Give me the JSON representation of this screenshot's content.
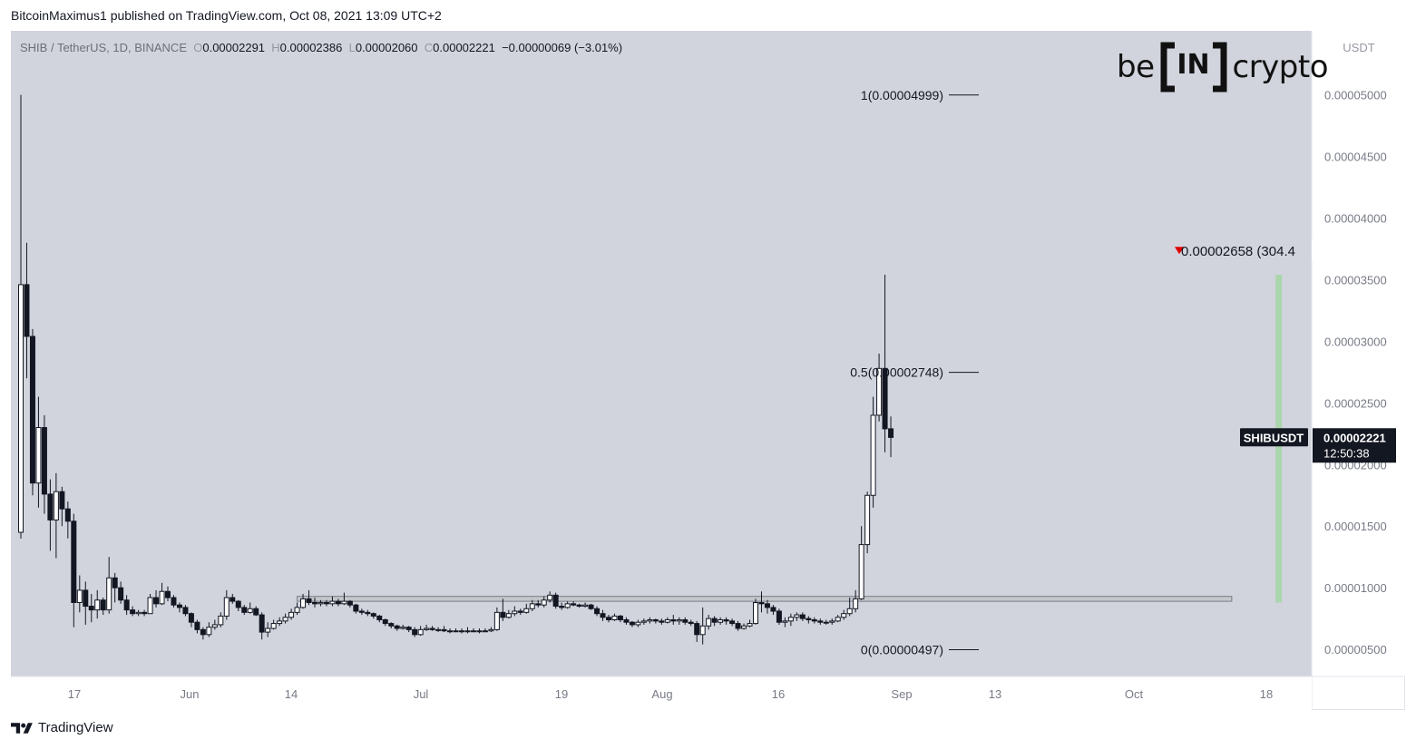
{
  "header": {
    "published_line": "BitcoinMaximus1 published on TradingView.com, Oct 08, 2021 13:09 UTC+2"
  },
  "symbol_bar": {
    "symbol": "SHIB / TetherUS, 1D, BINANCE",
    "open_label": "O",
    "open": "0.00002291",
    "high_label": "H",
    "high": "0.00002386",
    "low_label": "L",
    "low": "0.00002060",
    "close_label": "C",
    "close": "0.00002221",
    "change": "−0.00000069 (−3.01%)"
  },
  "logo": {
    "left": "be",
    "box": "IN",
    "right": "crypto"
  },
  "price_axis": {
    "currency": "USDT",
    "ticks": [
      "0.00005000",
      "0.00004500",
      "0.00004000",
      "0.00003500",
      "0.00003000",
      "0.00002500",
      "0.00002000",
      "0.00001500",
      "0.00001000",
      "0.00000500"
    ]
  },
  "last_price_tag": {
    "symbol": "SHIBUSDT",
    "price": "0.00002221",
    "countdown": "12:50:38"
  },
  "footer": {
    "brand": "TradingView"
  },
  "colors": {
    "chart_bg": "#d1d4dc",
    "candle_up": "#ffffff",
    "candle_down": "#131722",
    "green_bar": "#a5d6a7",
    "marker": "#e00000"
  },
  "chart_data": {
    "type": "candlestick",
    "title": "SHIB / TetherUS, 1D, BINANCE",
    "ylabel": "USDT",
    "ylim": [
      2.8e-06,
      5.52e-05
    ],
    "x_ticks": [
      "17",
      "Jun",
      "14",
      "Jul",
      "19",
      "Aug",
      "16",
      "Sep",
      "13",
      "Oct",
      "18"
    ],
    "fib_levels": [
      {
        "label": "1(0.00004999)",
        "value": 4.999e-05
      },
      {
        "label": "0.5(0.00002748)",
        "value": 2.748e-05
      },
      {
        "label": "0(0.00000497)",
        "value": 4.97e-06
      }
    ],
    "support_zone": {
      "low": 8.9e-06,
      "high": 9.3e-06
    },
    "high_marker": {
      "label": "0.00002658 (304.4",
      "value": 3.73e-05
    },
    "green_range": {
      "low": 8.8e-06,
      "high": 3.54e-05
    },
    "last_price": 2.221e-05,
    "candles_1": [
      [
        1.45e-05,
        3.46e-05,
        5e-05,
        1.4e-05
      ],
      [
        3.46e-05,
        3.04e-05,
        3.8e-05,
        2.7e-05
      ],
      [
        3.04e-05,
        1.85e-05,
        3.1e-05,
        1.75e-05
      ],
      [
        1.85e-05,
        2.3e-05,
        2.55e-05,
        1.65e-05
      ],
      [
        2.3e-05,
        1.76e-05,
        2.4e-05,
        1.6e-05
      ],
      [
        1.76e-05,
        1.55e-05,
        1.88e-05,
        1.3e-05
      ],
      [
        1.55e-05,
        1.78e-05,
        1.93e-05,
        1.24e-05
      ],
      [
        1.78e-05,
        1.64e-05,
        1.82e-05,
        1.5e-05
      ],
      [
        1.64e-05,
        1.54e-05,
        1.7e-05,
        1.4e-05
      ],
      [
        1.54e-05,
        8.8e-06,
        1.6e-05,
        6.8e-06
      ],
      [
        8.8e-06,
        9.8e-06,
        1.1e-05,
        8e-06
      ],
      [
        9.8e-06,
        8.5e-06,
        1.05e-05,
        7e-06
      ],
      [
        8.5e-06,
        8.2e-06,
        9.5e-06,
        7.2e-06
      ],
      [
        8.2e-06,
        9e-06,
        9.8e-06,
        7.5e-06
      ],
      [
        9e-06,
        8.2e-06,
        9.2e-06,
        7.8e-06
      ],
      [
        8.2e-06,
        1.08e-05,
        1.25e-05,
        7.9e-06
      ],
      [
        1.08e-05,
        1e-05,
        1.12e-05,
        8.8e-06
      ],
      [
        1e-05,
        9e-06,
        1.05e-05,
        8.7e-06
      ],
      [
        9e-06,
        8.2e-06,
        9.4e-06,
        7.8e-06
      ],
      [
        8.2e-06,
        7.9e-06,
        8.5e-06,
        7.7e-06
      ],
      [
        7.9e-06,
        8e-06,
        8.2e-06,
        7.7e-06
      ],
      [
        8e-06,
        7.9e-06,
        8.2e-06,
        7.7e-06
      ],
      [
        7.9e-06,
        9.2e-06,
        9.5e-06,
        7.9e-06
      ]
    ],
    "candles_2": [
      [
        9.2e-06,
        8.7e-06,
        9.8e-06,
        8.4e-06
      ],
      [
        8.7e-06,
        9.7e-06,
        1.04e-05,
        8.6e-06
      ],
      [
        9.7e-06,
        9.2e-06,
        1.01e-05,
        8.9e-06
      ],
      [
        9.2e-06,
        8.6e-06,
        9.4e-06,
        8.4e-06
      ],
      [
        8.6e-06,
        8.4e-06,
        8.8e-06,
        8e-06
      ],
      [
        8.4e-06,
        7.9e-06,
        8.6e-06,
        7.7e-06
      ],
      [
        7.9e-06,
        7.2e-06,
        8e-06,
        6.8e-06
      ],
      [
        7.2e-06,
        6.6e-06,
        7.4e-06,
        6.3e-06
      ],
      [
        6.6e-06,
        6.2e-06,
        6.8e-06,
        5.8e-06
      ],
      [
        6.2e-06,
        6.8e-06,
        7.2e-06,
        6e-06
      ],
      [
        6.8e-06,
        7e-06,
        7.4e-06,
        6.6e-06
      ],
      [
        7e-06,
        7.7e-06,
        8e-06,
        6.8e-06
      ],
      [
        7.7e-06,
        9.2e-06,
        9.8e-06,
        7.4e-06
      ],
      [
        9.2e-06,
        8.9e-06,
        9.5e-06,
        8.7e-06
      ],
      [
        8.9e-06,
        8.4e-06,
        9e-06,
        8.1e-06
      ],
      [
        8.4e-06,
        8e-06,
        8.6e-06,
        7.8e-06
      ],
      [
        8e-06,
        8.3e-06,
        8.8e-06,
        7.9e-06
      ],
      [
        8.3e-06,
        7.8e-06,
        8.5e-06,
        7.7e-06
      ],
      [
        7.8e-06,
        6.4e-06,
        8e-06,
        5.8e-06
      ],
      [
        6.4e-06,
        6.7e-06,
        7.2e-06,
        6e-06
      ],
      [
        6.7e-06,
        7.1e-06,
        7.4e-06,
        6.6e-06
      ],
      [
        7.1e-06,
        7.3e-06,
        7.6e-06,
        6.9e-06
      ],
      [
        7.3e-06,
        7.6e-06,
        7.9e-06,
        7.1e-06
      ],
      [
        7.6e-06,
        8e-06,
        8.3e-06,
        7.4e-06
      ],
      [
        8e-06,
        8.4e-06,
        8.8e-06,
        7.8e-06
      ],
      [
        8.4e-06,
        9.1e-06,
        9.5e-06,
        8.3e-06
      ],
      [
        9.1e-06,
        8.8e-06,
        9.8e-06,
        8.6e-06
      ],
      [
        8.8e-06,
        8.7e-06,
        9.2e-06,
        8.4e-06
      ],
      [
        8.7e-06,
        8.8e-06,
        9e-06,
        8.5e-06
      ],
      [
        8.8e-06,
        8.7e-06,
        9e-06,
        8.5e-06
      ],
      [
        8.7e-06,
        8.9e-06,
        9.3e-06,
        8.5e-06
      ],
      [
        8.9e-06,
        8.7e-06,
        9.1e-06,
        8.5e-06
      ],
      [
        8.7e-06,
        8.9e-06,
        9.6e-06,
        8.6e-06
      ],
      [
        8.9e-06,
        8.6e-06,
        9e-06,
        8.4e-06
      ],
      [
        8.6e-06,
        8.1e-06,
        8.7e-06,
        7.9e-06
      ],
      [
        8.1e-06,
        8e-06,
        8.3e-06,
        7.8e-06
      ],
      [
        8e-06,
        7.9e-06,
        8.2e-06,
        7.7e-06
      ],
      [
        7.9e-06,
        7.7e-06,
        8e-06,
        7.5e-06
      ],
      [
        7.7e-06,
        7.4e-06,
        7.8e-06,
        7.2e-06
      ],
      [
        7.4e-06,
        7.1e-06,
        7.5e-06,
        6.9e-06
      ],
      [
        7.1e-06,
        6.9e-06,
        7.2e-06,
        6.7e-06
      ],
      [
        6.9e-06,
        6.7e-06,
        7e-06,
        6.5e-06
      ],
      [
        6.7e-06,
        6.8e-06,
        7e-06,
        6.6e-06
      ],
      [
        6.8e-06,
        6.6e-06,
        6.9e-06,
        6.4e-06
      ]
    ],
    "candles_3": [
      [
        6.6e-06,
        6.2e-06,
        6.8e-06,
        6e-06
      ],
      [
        6.2e-06,
        6.6e-06,
        6.9e-06,
        6.1e-06
      ],
      [
        6.6e-06,
        6.7e-06,
        7e-06,
        6.5e-06
      ],
      [
        6.7e-06,
        6.6e-06,
        6.9e-06,
        6.5e-06
      ],
      [
        6.6e-06,
        6.6e-06,
        6.8e-06,
        6.4e-06
      ],
      [
        6.6e-06,
        6.5e-06,
        6.9e-06,
        6.4e-06
      ],
      [
        6.5e-06,
        6.5e-06,
        6.7e-06,
        6.3e-06
      ],
      [
        6.5e-06,
        6.5e-06,
        6.7e-06,
        6.4e-06
      ],
      [
        6.5e-06,
        6.5e-06,
        6.7e-06,
        6.3e-06
      ],
      [
        6.5e-06,
        6.5e-06,
        6.8e-06,
        6.3e-06
      ],
      [
        6.5e-06,
        6.5e-06,
        6.7e-06,
        6.4e-06
      ],
      [
        6.5e-06,
        6.5e-06,
        6.7e-06,
        6.3e-06
      ],
      [
        6.5e-06,
        6.5e-06,
        6.7e-06,
        6.4e-06
      ],
      [
        6.5e-06,
        6.6e-06,
        6.8e-06,
        6.4e-06
      ],
      [
        6.6e-06,
        8e-06,
        8.4e-06,
        6.5e-06
      ],
      [
        8e-06,
        7.6e-06,
        9.1e-06,
        7.3e-06
      ],
      [
        7.6e-06,
        7.9e-06,
        8.2e-06,
        7.5e-06
      ],
      [
        7.9e-06,
        8.1e-06,
        8.5e-06,
        7.7e-06
      ],
      [
        8.1e-06,
        8e-06,
        8.3e-06,
        7.8e-06
      ],
      [
        8e-06,
        8.3e-06,
        8.7e-06,
        7.9e-06
      ],
      [
        8.3e-06,
        8.7e-06,
        9e-06,
        8.1e-06
      ],
      [
        8.7e-06,
        8.6e-06,
        9e-06,
        8.4e-06
      ],
      [
        8.6e-06,
        9e-06,
        9.3e-06,
        8.4e-06
      ],
      [
        9e-06,
        9.4e-06,
        9.7e-06,
        8.8e-06
      ],
      [
        9.4e-06,
        8.5e-06,
        9.6e-06,
        8.3e-06
      ],
      [
        8.5e-06,
        8.4e-06,
        8.8e-06,
        8.2e-06
      ],
      [
        8.4e-06,
        8.7e-06,
        8.9e-06,
        8.3e-06
      ],
      [
        8.7e-06,
        8.6e-06,
        8.9e-06,
        8.5e-06
      ],
      [
        8.6e-06,
        8.5e-06,
        8.7e-06,
        8.4e-06
      ],
      [
        8.5e-06,
        8.6e-06,
        8.8e-06,
        8.4e-06
      ],
      [
        8.6e-06,
        8.3e-06,
        8.7e-06,
        8.2e-06
      ],
      [
        8.3e-06,
        7.9e-06,
        8.5e-06,
        7.7e-06
      ],
      [
        7.9e-06,
        7.6e-06,
        8.2e-06,
        7.3e-06
      ],
      [
        7.6e-06,
        7.4e-06,
        7.8e-06,
        7.2e-06
      ],
      [
        7.4e-06,
        7.7e-06,
        7.9e-06,
        7.3e-06
      ],
      [
        7.7e-06,
        7.4e-06,
        7.8e-06,
        7.2e-06
      ],
      [
        7.4e-06,
        7.2e-06,
        7.6e-06,
        7e-06
      ],
      [
        7.2e-06,
        7e-06,
        7.3e-06,
        6.8e-06
      ],
      [
        7e-06,
        7.2e-06,
        7.4e-06,
        6.8e-06
      ],
      [
        7.2e-06,
        7.3e-06,
        7.5e-06,
        7e-06
      ],
      [
        7.3e-06,
        7.4e-06,
        7.6e-06,
        7.1e-06
      ],
      [
        7.4e-06,
        7.3e-06,
        7.5e-06,
        7.1e-06
      ],
      [
        7.3e-06,
        7.2e-06,
        7.5e-06,
        7e-06
      ],
      [
        7.2e-06,
        7.4e-06,
        7.6e-06,
        7.1e-06
      ]
    ],
    "candles_4": [
      [
        7.4e-06,
        7.3e-06,
        7.8e-06,
        7e-06
      ],
      [
        7.3e-06,
        7.4e-06,
        7.6e-06,
        7e-06
      ],
      [
        7.4e-06,
        7.2e-06,
        7.6e-06,
        7e-06
      ],
      [
        7.2e-06,
        7.1e-06,
        7.4e-06,
        6.9e-06
      ],
      [
        7.1e-06,
        6.2e-06,
        7.3e-06,
        5.6e-06
      ],
      [
        6.2e-06,
        6.9e-06,
        8.4e-06,
        5.4e-06
      ],
      [
        6.9e-06,
        7.5e-06,
        7.8e-06,
        6.6e-06
      ],
      [
        7.5e-06,
        7.2e-06,
        7.7e-06,
        6.9e-06
      ],
      [
        7.2e-06,
        7.4e-06,
        7.6e-06,
        7e-06
      ],
      [
        7.4e-06,
        7.3e-06,
        7.6e-06,
        7e-06
      ],
      [
        7.3e-06,
        7.1e-06,
        7.5e-06,
        6.9e-06
      ],
      [
        7.1e-06,
        6.7e-06,
        7.3e-06,
        6.5e-06
      ],
      [
        6.7e-06,
        6.9e-06,
        7.1e-06,
        6.6e-06
      ],
      [
        6.9e-06,
        7.1e-06,
        7.4e-06,
        6.8e-06
      ],
      [
        7.1e-06,
        8.8e-06,
        9.1e-06,
        7e-06
      ],
      [
        8.8e-06,
        8.7e-06,
        9.7e-06,
        8e-06
      ],
      [
        8.7e-06,
        8.4e-06,
        9e-06,
        7.9e-06
      ],
      [
        8.4e-06,
        8.1e-06,
        8.6e-06,
        7.8e-06
      ],
      [
        8.1e-06,
        7.2e-06,
        8.3e-06,
        7e-06
      ],
      [
        7.2e-06,
        7.3e-06,
        7.6e-06,
        6.8e-06
      ],
      [
        7.3e-06,
        7.6e-06,
        7.9e-06,
        6.9e-06
      ],
      [
        7.6e-06,
        7.8e-06,
        8e-06,
        7.3e-06
      ],
      [
        7.8e-06,
        7.5e-06,
        8e-06,
        7.3e-06
      ],
      [
        7.5e-06,
        7.4e-06,
        7.7e-06,
        7.1e-06
      ],
      [
        7.4e-06,
        7.3e-06,
        7.6e-06,
        7.1e-06
      ],
      [
        7.3e-06,
        7.2e-06,
        7.5e-06,
        7e-06
      ],
      [
        7.2e-06,
        7.2e-06,
        7.4e-06,
        7e-06
      ],
      [
        7.2e-06,
        7.3e-06,
        7.5e-06,
        7e-06
      ],
      [
        7.3e-06,
        7.6e-06,
        7.8e-06,
        7.2e-06
      ],
      [
        7.6e-06,
        7.9e-06,
        8.2e-06,
        7.4e-06
      ],
      [
        7.9e-06,
        8.3e-06,
        9.2e-06,
        7.7e-06
      ],
      [
        8.3e-06,
        9.1e-06,
        9.8e-06,
        8e-06
      ],
      [
        9.1e-06,
        1.35e-05,
        1.5e-05,
        9e-06
      ],
      [
        1.35e-05,
        1.75e-05,
        1.78e-05,
        1.28e-05
      ],
      [
        1.75e-05,
        2.4e-05,
        2.55e-05,
        1.65e-05
      ],
      [
        2.4e-05,
        2.78e-05,
        2.9e-05,
        2.35e-05
      ],
      [
        2.78e-05,
        2.29e-05,
        3.54e-05,
        2.1e-05
      ],
      [
        2.29e-05,
        2.22e-05,
        2.39e-05,
        2.06e-05
      ]
    ]
  }
}
